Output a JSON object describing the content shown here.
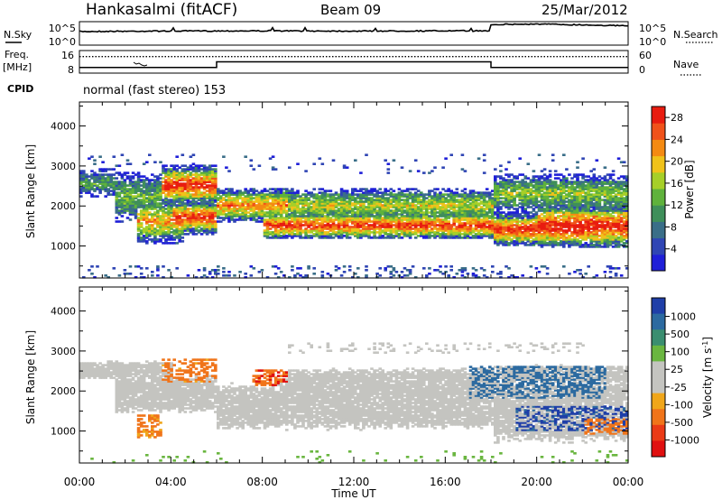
{
  "header": {
    "station": "Hankasalmi (fitACF)",
    "beam": "Beam 09",
    "date": "25/Mar/2012"
  },
  "noise_panel": {
    "left_label": "N.Sky",
    "right_label": "N.Search",
    "left_ticks": [
      "10^5",
      "10^0"
    ],
    "right_ticks": [
      "10^5",
      "10^0"
    ]
  },
  "freq_panel": {
    "left_label_top": "Freq.",
    "left_label_bottom": "[MHz]",
    "right_label": "Nave",
    "left_ticks": [
      "16",
      "8"
    ],
    "right_ticks": [
      "60",
      "0"
    ]
  },
  "cpid": {
    "label": "CPID",
    "value": "normal (fast stereo) 153"
  },
  "colors": {
    "power": [
      "#1f1fd8",
      "#2f45b4",
      "#3a6e88",
      "#3f8f5a",
      "#5fb23c",
      "#a6cf28",
      "#f0c21a",
      "#f48a12",
      "#f0521a",
      "#e81c10"
    ],
    "velocity": [
      "#1f3fa8",
      "#2c6aa0",
      "#3a8e70",
      "#6ab640",
      "#c4c4c0",
      "#c4c4c0",
      "#f0a61a",
      "#f0741a",
      "#ea3a16",
      "#e01010"
    ],
    "ground_scatter": "#c4c4c0"
  },
  "chart_data": [
    {
      "type": "line",
      "title": "N.Sky / N.Search",
      "x": [
        "00:00",
        "04:00",
        "08:00",
        "12:00",
        "16:00",
        "18:00",
        "20:00",
        "24:00"
      ],
      "series": [
        {
          "name": "N.Sky",
          "values": [
            800,
            1000,
            1100,
            1000,
            1100,
            25000,
            30000,
            12000
          ]
        }
      ],
      "log_scale": true,
      "ylim": [
        1,
        100000
      ]
    },
    {
      "type": "line",
      "title": "Freq. [MHz] / Nave",
      "x": [
        "00:00",
        "06:00",
        "06:00",
        "18:00",
        "18:00",
        "24:00"
      ],
      "series": [
        {
          "name": "Freq.",
          "values": [
            10,
            10,
            12,
            12,
            10,
            10
          ]
        },
        {
          "name": "Nave",
          "values": [
            44,
            44,
            44,
            44,
            44,
            44
          ]
        }
      ],
      "ylim": [
        8,
        16
      ]
    },
    {
      "type": "heatmap",
      "title": "Power [dB]",
      "xlabel": "Time UT",
      "ylabel": "Slant Range [km]",
      "x_ticks": [
        "00:00",
        "04:00",
        "08:00",
        "12:00",
        "16:00",
        "20:00",
        "00:00"
      ],
      "xlim_hours": [
        0,
        24
      ],
      "y_ticks": [
        1000,
        2000,
        3000,
        4000
      ],
      "ylim": [
        200,
        4600
      ],
      "colorbar_label": "Power [dB]",
      "colorbar_ticks": [
        4,
        8,
        12,
        16,
        20,
        24,
        28
      ],
      "colorbar_range": [
        0,
        30
      ],
      "bands": [
        {
          "t": [
            0,
            1.5
          ],
          "center": 2550,
          "width": 250,
          "peak": 12
        },
        {
          "t": [
            1.5,
            3.5
          ],
          "center": 2200,
          "width": 450,
          "peak": 14
        },
        {
          "t": [
            2.5,
            4.5
          ],
          "center": 1600,
          "width": 400,
          "peak": 22
        },
        {
          "t": [
            3.5,
            6
          ],
          "center": 2500,
          "width": 350,
          "peak": 29
        },
        {
          "t": [
            4,
            6
          ],
          "center": 1700,
          "width": 300,
          "peak": 29
        },
        {
          "t": [
            6,
            9
          ],
          "center": 2000,
          "width": 300,
          "peak": 24
        },
        {
          "t": [
            8,
            18
          ],
          "center": 1500,
          "width": 250,
          "peak": 28
        },
        {
          "t": [
            9,
            18
          ],
          "center": 2000,
          "width": 300,
          "peak": 18
        },
        {
          "t": [
            18,
            22
          ],
          "center": 1400,
          "width": 300,
          "peak": 29
        },
        {
          "t": [
            20,
            24
          ],
          "center": 1500,
          "width": 400,
          "peak": 30
        },
        {
          "t": [
            18,
            24
          ],
          "center": 2300,
          "width": 350,
          "peak": 16
        }
      ]
    },
    {
      "type": "heatmap",
      "title": "Velocity [m s^-1]",
      "xlabel": "Time UT",
      "ylabel": "Slant Range [km]",
      "x_ticks": [
        "00:00",
        "04:00",
        "08:00",
        "12:00",
        "16:00",
        "20:00",
        "00:00"
      ],
      "xlim_hours": [
        0,
        24
      ],
      "y_ticks": [
        1000,
        2000,
        3000,
        4000
      ],
      "ylim": [
        200,
        4600
      ],
      "colorbar_label": "Velocity [m s^-1]",
      "colorbar_ticks": [
        1000,
        500,
        100,
        25,
        -25,
        -100,
        -500,
        -1000
      ],
      "ground_scatter_bands": [
        {
          "t": [
            0,
            4
          ],
          "center": 2500,
          "width": 200
        },
        {
          "t": [
            1.5,
            6
          ],
          "center": 1900,
          "width": 400
        },
        {
          "t": [
            6,
            18
          ],
          "center": 1600,
          "width": 500
        },
        {
          "t": [
            9,
            18
          ],
          "center": 2100,
          "width": 400
        },
        {
          "t": [
            18,
            24
          ],
          "center": 1500,
          "width": 700
        },
        {
          "t": [
            18,
            24
          ],
          "center": 2400,
          "width": 200
        }
      ],
      "velocity_patches": [
        {
          "t": [
            3.5,
            6
          ],
          "range": [
            2200,
            2800
          ],
          "v": -200
        },
        {
          "t": [
            2.5,
            3.5
          ],
          "range": [
            800,
            1400
          ],
          "v": -150
        },
        {
          "t": [
            7.5,
            9
          ],
          "range": [
            2100,
            2500
          ],
          "v": -400
        },
        {
          "t": [
            17,
            23
          ],
          "range": [
            1800,
            2600
          ],
          "v": 300
        },
        {
          "t": [
            19,
            24
          ],
          "range": [
            1000,
            1600
          ],
          "v": 800
        },
        {
          "t": [
            22,
            24
          ],
          "range": [
            900,
            1300
          ],
          "v": -300
        }
      ]
    }
  ]
}
